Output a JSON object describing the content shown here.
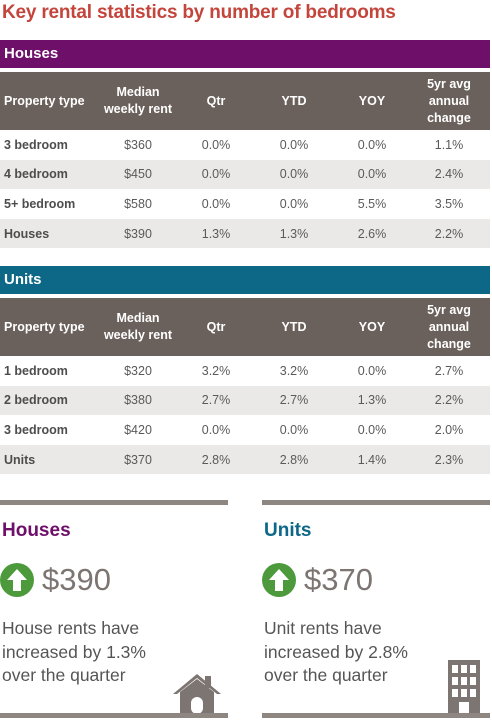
{
  "title": "Key rental statistics by number of bedrooms",
  "headers": [
    "Property type",
    "Median weekly rent",
    "Qtr",
    "YTD",
    "YOY",
    "5yr avg annual change"
  ],
  "houses": {
    "section_label": "Houses",
    "rows": [
      [
        "3 bedroom",
        "$360",
        "0.0%",
        "0.0%",
        "0.0%",
        "1.1%"
      ],
      [
        "4 bedroom",
        "$450",
        "0.0%",
        "0.0%",
        "0.0%",
        "2.4%"
      ],
      [
        "5+ bedroom",
        "$580",
        "0.0%",
        "0.0%",
        "5.5%",
        "3.5%"
      ],
      [
        "Houses",
        "$390",
        "1.3%",
        "1.3%",
        "2.6%",
        "2.2%"
      ]
    ]
  },
  "units": {
    "section_label": "Units",
    "rows": [
      [
        "1 bedroom",
        "$320",
        "3.2%",
        "3.2%",
        "0.0%",
        "2.7%"
      ],
      [
        "2 bedroom",
        "$380",
        "2.7%",
        "2.7%",
        "1.3%",
        "2.2%"
      ],
      [
        "3 bedroom",
        "$420",
        "0.0%",
        "0.0%",
        "0.0%",
        "2.0%"
      ],
      [
        "Units",
        "$370",
        "2.8%",
        "2.8%",
        "1.4%",
        "2.3%"
      ]
    ]
  },
  "summary": {
    "houses": {
      "heading": "Houses",
      "amount": "$390",
      "description": "House rents have increased by 1.3% over the quarter",
      "icon": "house-icon"
    },
    "units": {
      "heading": "Units",
      "amount": "$370",
      "description": "Unit rents have increased by 2.8% over the quarter",
      "icon": "apartment-building-icon"
    }
  },
  "colors": {
    "title": "#c4453c",
    "houses_accent": "#6e0f6a",
    "units_accent": "#0d6888",
    "header_bg": "#6b615c",
    "row_alt": "#ebe9e8",
    "up_arrow": "#4c9a3c",
    "icon_gray": "#7c7571"
  }
}
